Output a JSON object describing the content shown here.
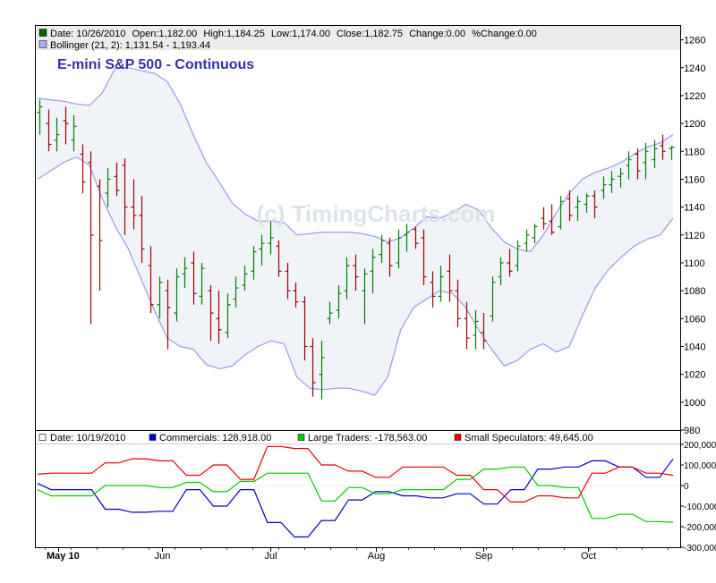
{
  "chart_data": [
    {
      "type": "ohlc",
      "title": "E-mini S&P 500 - Continuous",
      "watermark": "(c) TimingCharts.com",
      "header": {
        "date": "Date: 10/26/2010",
        "open": "Open:1,182.00",
        "high": "High:1,184.25",
        "low": "Low:1,174.00",
        "close": "Close:1,182.75",
        "change": "Change:0.00",
        "pct_change": "%Change:0.00",
        "bollinger": "Bollinger (21, 2): 1,131.54 - 1,193.44"
      },
      "ylim": [
        980,
        1270
      ],
      "y_ticks": [
        "980",
        "1000",
        "1020",
        "1040",
        "1060",
        "1080",
        "1100",
        "1120",
        "1140",
        "1160",
        "1180",
        "1200",
        "1220",
        "1240",
        "1260"
      ],
      "x_ticks": [
        "May 10",
        "Jun",
        "Jul",
        "Aug",
        "Sep",
        "Oct"
      ],
      "colors": {
        "up": "#008000",
        "down": "#a00000",
        "band_line": "#9999ee",
        "band_fill": "#f0f3f8",
        "title": "#3333aa"
      },
      "bollinger_upper": [
        1218,
        1217,
        1216,
        1214,
        1213,
        1222,
        1240,
        1240,
        1238,
        1236,
        1230,
        1214,
        1192,
        1172,
        1158,
        1143,
        1135,
        1130,
        1130,
        1129,
        1120,
        1121,
        1122,
        1122,
        1122,
        1121,
        1119,
        1115,
        1118,
        1125,
        1133,
        1132,
        1136,
        1142,
        1138,
        1125,
        1115,
        1110,
        1108,
        1120,
        1136,
        1150,
        1160,
        1165,
        1168,
        1172,
        1178,
        1183,
        1186,
        1192
      ],
      "bollinger_lower": [
        1160,
        1166,
        1172,
        1176,
        1170,
        1146,
        1126,
        1110,
        1088,
        1066,
        1046,
        1040,
        1038,
        1027,
        1024,
        1026,
        1034,
        1040,
        1044,
        1042,
        1018,
        1010,
        1009,
        1010,
        1010,
        1008,
        1005,
        1018,
        1052,
        1068,
        1074,
        1080,
        1078,
        1068,
        1052,
        1038,
        1026,
        1030,
        1038,
        1042,
        1036,
        1040,
        1062,
        1082,
        1095,
        1104,
        1112,
        1117,
        1120,
        1132
      ],
      "ohlc_bars": [
        {
          "o": 1208,
          "h": 1217,
          "l": 1192,
          "c": 1212
        },
        {
          "o": 1200,
          "h": 1210,
          "l": 1180,
          "c": 1185
        },
        {
          "o": 1188,
          "h": 1204,
          "l": 1180,
          "c": 1192
        },
        {
          "o": 1202,
          "h": 1212,
          "l": 1185,
          "c": 1200
        },
        {
          "o": 1188,
          "h": 1206,
          "l": 1180,
          "c": 1198
        },
        {
          "o": 1178,
          "h": 1185,
          "l": 1150,
          "c": 1158
        },
        {
          "o": 1172,
          "h": 1180,
          "l": 1056,
          "c": 1120
        },
        {
          "o": 1155,
          "h": 1160,
          "l": 1080,
          "c": 1116
        },
        {
          "o": 1150,
          "h": 1168,
          "l": 1140,
          "c": 1160
        },
        {
          "o": 1162,
          "h": 1172,
          "l": 1148,
          "c": 1152
        },
        {
          "o": 1170,
          "h": 1175,
          "l": 1120,
          "c": 1140
        },
        {
          "o": 1140,
          "h": 1160,
          "l": 1124,
          "c": 1134
        },
        {
          "o": 1134,
          "h": 1148,
          "l": 1100,
          "c": 1110
        },
        {
          "o": 1098,
          "h": 1112,
          "l": 1064,
          "c": 1070
        },
        {
          "o": 1070,
          "h": 1090,
          "l": 1060,
          "c": 1086
        },
        {
          "o": 1080,
          "h": 1088,
          "l": 1038,
          "c": 1068
        },
        {
          "o": 1064,
          "h": 1096,
          "l": 1058,
          "c": 1090
        },
        {
          "o": 1092,
          "h": 1104,
          "l": 1082,
          "c": 1096
        },
        {
          "o": 1100,
          "h": 1108,
          "l": 1070,
          "c": 1078
        },
        {
          "o": 1076,
          "h": 1100,
          "l": 1070,
          "c": 1096
        },
        {
          "o": 1080,
          "h": 1084,
          "l": 1044,
          "c": 1064
        },
        {
          "o": 1060,
          "h": 1080,
          "l": 1042,
          "c": 1052
        },
        {
          "o": 1050,
          "h": 1078,
          "l": 1046,
          "c": 1070
        },
        {
          "o": 1074,
          "h": 1090,
          "l": 1068,
          "c": 1082
        },
        {
          "o": 1084,
          "h": 1098,
          "l": 1080,
          "c": 1092
        },
        {
          "o": 1094,
          "h": 1112,
          "l": 1088,
          "c": 1108
        },
        {
          "o": 1110,
          "h": 1120,
          "l": 1098,
          "c": 1114
        },
        {
          "o": 1114,
          "h": 1130,
          "l": 1106,
          "c": 1118
        },
        {
          "o": 1112,
          "h": 1116,
          "l": 1090,
          "c": 1094
        },
        {
          "o": 1094,
          "h": 1100,
          "l": 1074,
          "c": 1080
        },
        {
          "o": 1080,
          "h": 1086,
          "l": 1068,
          "c": 1072
        },
        {
          "o": 1072,
          "h": 1076,
          "l": 1030,
          "c": 1040
        },
        {
          "o": 1040,
          "h": 1046,
          "l": 1004,
          "c": 1014
        },
        {
          "o": 1020,
          "h": 1044,
          "l": 1002,
          "c": 1032
        },
        {
          "o": 1060,
          "h": 1072,
          "l": 1056,
          "c": 1064
        },
        {
          "o": 1066,
          "h": 1084,
          "l": 1060,
          "c": 1078
        },
        {
          "o": 1080,
          "h": 1104,
          "l": 1074,
          "c": 1098
        },
        {
          "o": 1098,
          "h": 1106,
          "l": 1080,
          "c": 1090
        },
        {
          "o": 1080,
          "h": 1096,
          "l": 1056,
          "c": 1092
        },
        {
          "o": 1094,
          "h": 1110,
          "l": 1078,
          "c": 1104
        },
        {
          "o": 1106,
          "h": 1120,
          "l": 1100,
          "c": 1116
        },
        {
          "o": 1114,
          "h": 1118,
          "l": 1090,
          "c": 1098
        },
        {
          "o": 1100,
          "h": 1124,
          "l": 1096,
          "c": 1118
        },
        {
          "o": 1120,
          "h": 1128,
          "l": 1108,
          "c": 1122
        },
        {
          "o": 1124,
          "h": 1126,
          "l": 1110,
          "c": 1114
        },
        {
          "o": 1118,
          "h": 1124,
          "l": 1084,
          "c": 1090
        },
        {
          "o": 1086,
          "h": 1094,
          "l": 1068,
          "c": 1076
        },
        {
          "o": 1076,
          "h": 1098,
          "l": 1072,
          "c": 1090
        },
        {
          "o": 1094,
          "h": 1106,
          "l": 1072,
          "c": 1080
        },
        {
          "o": 1080,
          "h": 1088,
          "l": 1054,
          "c": 1060
        },
        {
          "o": 1060,
          "h": 1072,
          "l": 1038,
          "c": 1046
        },
        {
          "o": 1048,
          "h": 1066,
          "l": 1038,
          "c": 1058
        },
        {
          "o": 1050,
          "h": 1064,
          "l": 1038,
          "c": 1044
        },
        {
          "o": 1062,
          "h": 1090,
          "l": 1058,
          "c": 1086
        },
        {
          "o": 1090,
          "h": 1104,
          "l": 1084,
          "c": 1100
        },
        {
          "o": 1100,
          "h": 1110,
          "l": 1090,
          "c": 1094
        },
        {
          "o": 1098,
          "h": 1116,
          "l": 1094,
          "c": 1112
        },
        {
          "o": 1114,
          "h": 1124,
          "l": 1108,
          "c": 1120
        },
        {
          "o": 1118,
          "h": 1128,
          "l": 1114,
          "c": 1126
        },
        {
          "o": 1132,
          "h": 1140,
          "l": 1124,
          "c": 1128
        },
        {
          "o": 1130,
          "h": 1142,
          "l": 1120,
          "c": 1122
        },
        {
          "o": 1126,
          "h": 1148,
          "l": 1124,
          "c": 1144
        },
        {
          "o": 1146,
          "h": 1152,
          "l": 1130,
          "c": 1134
        },
        {
          "o": 1140,
          "h": 1148,
          "l": 1130,
          "c": 1144
        },
        {
          "o": 1142,
          "h": 1150,
          "l": 1136,
          "c": 1148
        },
        {
          "o": 1148,
          "h": 1152,
          "l": 1132,
          "c": 1140
        },
        {
          "o": 1152,
          "h": 1162,
          "l": 1146,
          "c": 1156
        },
        {
          "o": 1156,
          "h": 1166,
          "l": 1150,
          "c": 1160
        },
        {
          "o": 1162,
          "h": 1168,
          "l": 1154,
          "c": 1164
        },
        {
          "o": 1170,
          "h": 1180,
          "l": 1160,
          "c": 1174
        },
        {
          "o": 1178,
          "h": 1182,
          "l": 1160,
          "c": 1166
        },
        {
          "o": 1172,
          "h": 1186,
          "l": 1160,
          "c": 1180
        },
        {
          "o": 1174,
          "h": 1188,
          "l": 1168,
          "c": 1182
        },
        {
          "o": 1184,
          "h": 1192,
          "l": 1174,
          "c": 1180
        },
        {
          "o": 1182,
          "h": 1184,
          "l": 1174,
          "c": 1183
        }
      ]
    },
    {
      "type": "line",
      "title": "",
      "header": {
        "date": "Date: 10/19/2010",
        "commercials": "Commercials: 128,918.00",
        "large_traders": "Large Traders: -178,563.00",
        "small_speculators": "Small Speculators: 49,645.00"
      },
      "ylim": [
        -300000,
        200000
      ],
      "y_ticks": [
        "-300,000",
        "-200,000",
        "-100,000",
        "0",
        "100,000",
        "200,000"
      ],
      "x_ticks": [
        "May 10",
        "Jun",
        "Jul",
        "Aug",
        "Sep",
        "Oct"
      ],
      "series": [
        {
          "name": "Commercials",
          "color": "#0000cc",
          "values": [
            10000,
            -20000,
            -20000,
            -20000,
            -20000,
            -115000,
            -115000,
            -130000,
            -130000,
            -125000,
            -125000,
            -20000,
            -20000,
            -100000,
            -100000,
            -20000,
            -20000,
            -180000,
            -180000,
            -250000,
            -250000,
            -170000,
            -170000,
            -70000,
            -70000,
            -30000,
            -30000,
            -50000,
            -50000,
            -60000,
            -60000,
            -40000,
            -40000,
            -90000,
            -90000,
            -20000,
            -20000,
            80000,
            80000,
            90000,
            90000,
            120000,
            120000,
            90000,
            90000,
            40000,
            40000,
            128918
          ]
        },
        {
          "name": "Large Traders",
          "color": "#00cc00",
          "values": [
            -20000,
            -50000,
            -50000,
            -50000,
            -50000,
            0,
            0,
            0,
            0,
            -10000,
            -10000,
            15000,
            15000,
            -30000,
            -30000,
            20000,
            20000,
            60000,
            60000,
            60000,
            60000,
            -75000,
            -75000,
            -10000,
            -10000,
            -40000,
            -40000,
            -20000,
            -20000,
            -20000,
            -20000,
            30000,
            30000,
            80000,
            80000,
            90000,
            90000,
            0,
            0,
            -10000,
            -10000,
            -160000,
            -160000,
            -140000,
            -140000,
            -175000,
            -175000,
            -178563
          ]
        },
        {
          "name": "Small Speculators",
          "color": "#ee0000",
          "values": [
            55000,
            60000,
            60000,
            60000,
            60000,
            110000,
            110000,
            130000,
            130000,
            120000,
            120000,
            50000,
            50000,
            100000,
            100000,
            30000,
            30000,
            190000,
            190000,
            180000,
            180000,
            100000,
            100000,
            70000,
            70000,
            40000,
            40000,
            90000,
            90000,
            90000,
            90000,
            50000,
            50000,
            -20000,
            -20000,
            -80000,
            -80000,
            -50000,
            -50000,
            -60000,
            -60000,
            60000,
            60000,
            90000,
            90000,
            60000,
            60000,
            49645
          ]
        }
      ]
    }
  ]
}
